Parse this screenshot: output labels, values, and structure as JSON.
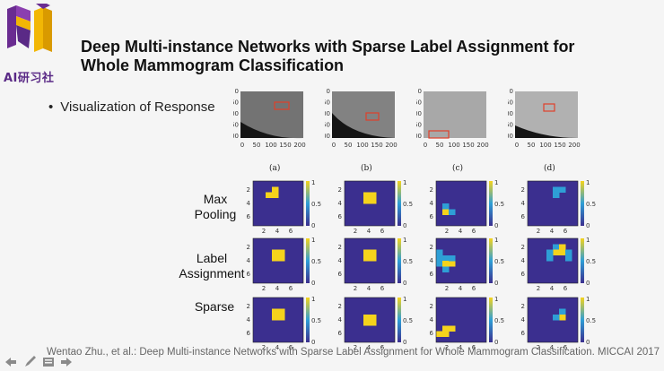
{
  "slide": {
    "logo_text": "AI研习社",
    "title_line1": "Deep Multi-instance Networks with Sparse Label Assignment for",
    "title_line2": "Whole Mammogram Classification",
    "bullet": "Visualization of Response",
    "footer": "Wentao Zhu., et al.: Deep Multi-instance Networks with Sparse Label Assignment for Whole Mammogram Classification. MICCAI 2017",
    "row_labels": [
      [
        "Max",
        "Pooling"
      ],
      [
        "Label",
        "Assignment"
      ],
      [
        "Sparse"
      ]
    ],
    "image_captions": [
      "(a)",
      "(b)",
      "(c)",
      "(d)"
    ]
  },
  "mammogram_axes": {
    "y_ticks": [
      "0",
      "50",
      "100",
      "150",
      "200"
    ],
    "x_ticks": [
      "0",
      "50",
      "100",
      "150",
      "200"
    ]
  },
  "heatmap_axes": {
    "y_ticks": [
      "2",
      "4",
      "6"
    ],
    "x_ticks": [
      "2",
      "4",
      "6"
    ],
    "colorbar_ticks": [
      "1",
      "0.5",
      "0"
    ]
  },
  "colors": {
    "heat_low": "#3b2f8f",
    "heat_mid": "#2e9fd6",
    "heat_high": "#f5d31c",
    "roi_box": "#e0402a",
    "logo_purple": "#5a2a86",
    "logo_yellow": "#f2b705"
  }
}
